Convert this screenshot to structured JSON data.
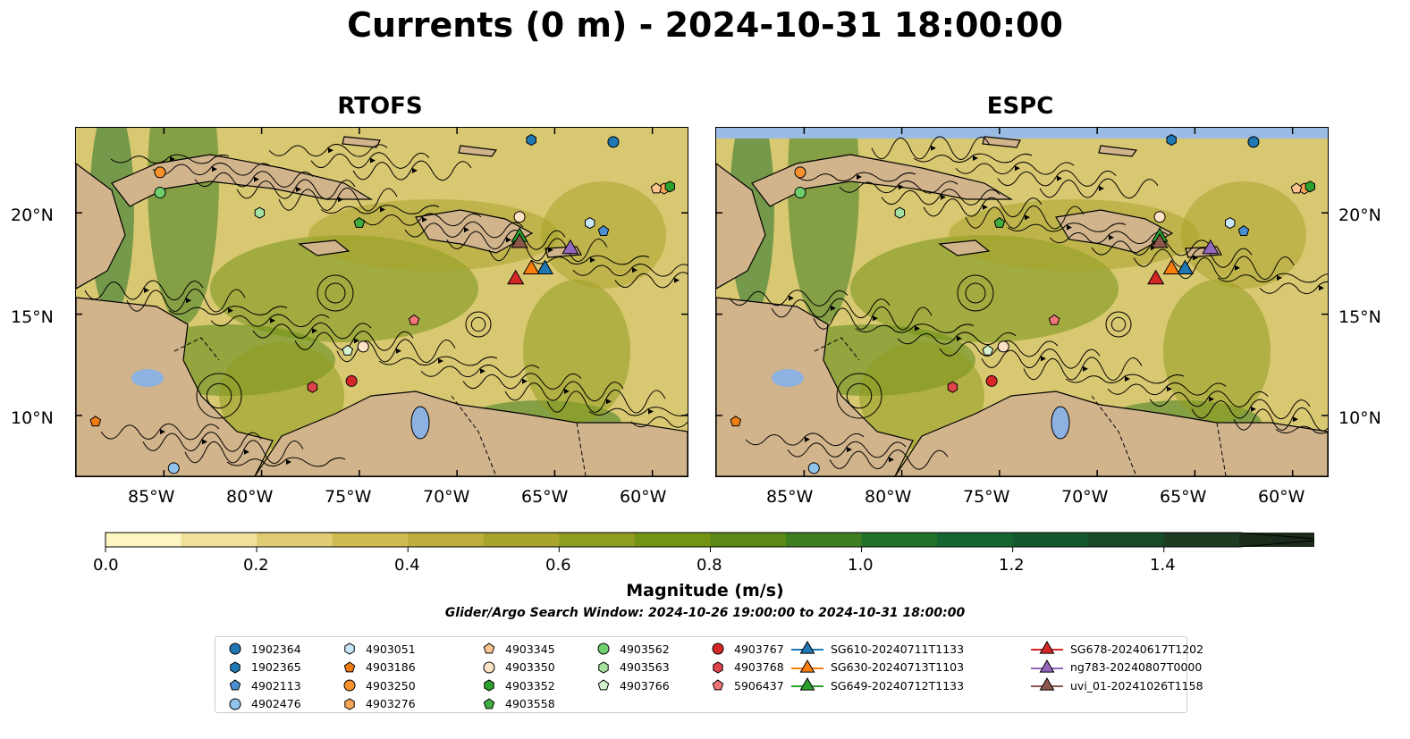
{
  "title": "Currents (0 m) - 2024-10-31 18:00:00",
  "panels": [
    {
      "title": "RTOFS",
      "id": "rtofs"
    },
    {
      "title": "ESPC",
      "id": "espc"
    }
  ],
  "map_extent": {
    "lon": [
      -89.5,
      -58.2
    ],
    "lat": [
      7.0,
      24.2
    ]
  },
  "lon_ticks": [
    "85°W",
    "80°W",
    "75°W",
    "70°W",
    "65°W",
    "60°W"
  ],
  "lat_ticks": [
    "20°N",
    "15°N",
    "10°N"
  ],
  "colorbar": {
    "label": "Magnitude (m/s)",
    "ticks": [
      "0.0",
      "0.2",
      "0.4",
      "0.6",
      "0.8",
      "1.0",
      "1.2",
      "1.4"
    ],
    "range": [
      0,
      1.5
    ],
    "extend": "max",
    "colors": [
      "#fdf6c1",
      "#f0e19a",
      "#e0cc73",
      "#cfbb52",
      "#bfae3e",
      "#a9a42c",
      "#8f9d1f",
      "#739315",
      "#5a8916",
      "#3f7e21",
      "#237229",
      "#14652f",
      "#125a2d",
      "#194a27",
      "#1c3d22",
      "#1b2c1a"
    ]
  },
  "search_window": "Glider/Argo Search Window: 2024-10-26 19:00:00 to 2024-10-31 18:00:00",
  "legend": [
    {
      "label": "1902364",
      "marker": "circle",
      "color": "#1f77b4"
    },
    {
      "label": "1902365",
      "marker": "hexagon",
      "color": "#1f77b4"
    },
    {
      "label": "4902113",
      "marker": "pentagon",
      "color": "#4a90d0"
    },
    {
      "label": "4902476",
      "marker": "circle",
      "color": "#8fc3ea"
    },
    {
      "label": "4903051",
      "marker": "hexagon",
      "color": "#c7e6f7"
    },
    {
      "label": "4903186",
      "marker": "pentagon",
      "color": "#f07d12"
    },
    {
      "label": "4903250",
      "marker": "circle",
      "color": "#f7912c"
    },
    {
      "label": "4903276",
      "marker": "hexagon",
      "color": "#fba657"
    },
    {
      "label": "4903345",
      "marker": "pentagon",
      "color": "#fdc58f"
    },
    {
      "label": "4903350",
      "marker": "circle",
      "color": "#fde3c6"
    },
    {
      "label": "4903352",
      "marker": "hexagon",
      "color": "#2ca02c"
    },
    {
      "label": "4903558",
      "marker": "pentagon",
      "color": "#3fae3f"
    },
    {
      "label": "4903562",
      "marker": "circle",
      "color": "#6fcf6f"
    },
    {
      "label": "4903563",
      "marker": "hexagon",
      "color": "#a6e3a1"
    },
    {
      "label": "4903766",
      "marker": "pentagon",
      "color": "#d7f5d0"
    },
    {
      "label": "4903767",
      "marker": "circle",
      "color": "#d62728"
    },
    {
      "label": "4903768",
      "marker": "hexagon",
      "color": "#e0434a"
    },
    {
      "label": "5906437",
      "marker": "pentagon",
      "color": "#f07478"
    },
    {
      "label": "SG610-20240711T1133",
      "marker": "triangle",
      "color": "#1f77b4"
    },
    {
      "label": "SG630-20240713T1103",
      "marker": "triangle",
      "color": "#ff7f0e"
    },
    {
      "label": "SG649-20240712T1133",
      "marker": "triangle",
      "color": "#2ca02c"
    },
    {
      "label": "SG678-20240617T1202",
      "marker": "triangle",
      "color": "#d62728"
    },
    {
      "label": "ng783-20240807T0000",
      "marker": "triangle",
      "color": "#9467bd"
    },
    {
      "label": "uvi_01-20241026T1158",
      "marker": "triangle",
      "color": "#8c564b"
    }
  ],
  "observations": [
    {
      "label": "1902364",
      "lon": -62.0,
      "lat": 23.5
    },
    {
      "label": "1902365",
      "lon": -66.2,
      "lat": 23.6
    },
    {
      "label": "4902113",
      "lon": -62.5,
      "lat": 19.1
    },
    {
      "label": "4902476",
      "lon": -84.5,
      "lat": 7.4
    },
    {
      "label": "4903051",
      "lon": -63.2,
      "lat": 19.5
    },
    {
      "label": "4903186",
      "lon": -88.5,
      "lat": 9.7
    },
    {
      "label": "4903250",
      "lon": -85.2,
      "lat": 22.0
    },
    {
      "label": "4903276",
      "lon": -59.4,
      "lat": 21.2
    },
    {
      "label": "4903345",
      "lon": -59.8,
      "lat": 21.2
    },
    {
      "label": "4903350",
      "lon": -74.8,
      "lat": 13.4
    },
    {
      "label": "4903352",
      "lon": -59.1,
      "lat": 21.3
    },
    {
      "label": "4903558",
      "lon": -75.0,
      "lat": 19.5
    },
    {
      "label": "4903562",
      "lon": -85.2,
      "lat": 21.0
    },
    {
      "label": "4903563",
      "lon": -80.1,
      "lat": 20.0
    },
    {
      "label": "4903766",
      "lon": -75.6,
      "lat": 13.2
    },
    {
      "label": "4903767",
      "lon": -75.4,
      "lat": 11.7
    },
    {
      "label": "4903768",
      "lon": -77.4,
      "lat": 11.4
    },
    {
      "label": "5906437",
      "lon": -72.2,
      "lat": 14.7
    },
    {
      "label": "4903350",
      "lon": -66.8,
      "lat": 19.8
    },
    {
      "label": "SG610-20240711T1133",
      "lon": -65.5,
      "lat": 17.3
    },
    {
      "label": "SG630-20240713T1103",
      "lon": -66.2,
      "lat": 17.3
    },
    {
      "label": "SG649-20240712T1133",
      "lon": -66.8,
      "lat": 18.9
    },
    {
      "label": "SG678-20240617T1202",
      "lon": -67.0,
      "lat": 16.8
    },
    {
      "label": "ng783-20240807T0000",
      "lon": -64.2,
      "lat": 18.3
    },
    {
      "label": "uvi_01-20241026T1158",
      "lon": -66.8,
      "lat": 18.6
    }
  ],
  "colors": {
    "land": "#d2b48c",
    "ocean_fill": "#d9c872",
    "lake": "#8db1e0",
    "no_data": "#9abbe3"
  }
}
